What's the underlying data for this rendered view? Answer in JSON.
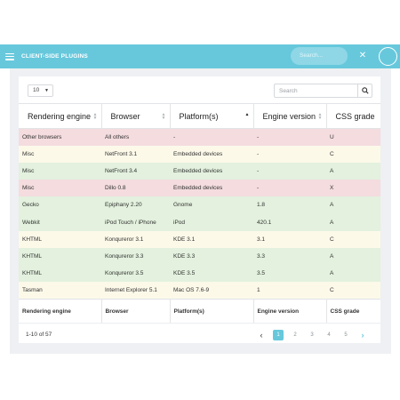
{
  "navbar": {
    "title": "CLIENT-SIDE PLUGINS",
    "search_placeholder": "Search..."
  },
  "controls": {
    "page_size": "10",
    "search_placeholder": "Search"
  },
  "table": {
    "headers": [
      "Rendering engine",
      "Browser",
      "Platform(s)",
      "Engine version",
      "CSS grade"
    ],
    "rows": [
      {
        "status": "red",
        "cells": [
          "Other browsers",
          "All others",
          "-",
          "-",
          "U"
        ]
      },
      {
        "status": "yellow",
        "cells": [
          "Misc",
          "NetFront 3.1",
          "Embedded devices",
          "-",
          "C"
        ]
      },
      {
        "status": "green",
        "cells": [
          "Misc",
          "NetFront 3.4",
          "Embedded devices",
          "-",
          "A"
        ]
      },
      {
        "status": "red",
        "cells": [
          "Misc",
          "Dillo 0.8",
          "Embedded devices",
          "-",
          "X"
        ]
      },
      {
        "status": "green",
        "cells": [
          "Gecko",
          "Epiphany 2.20",
          "Gnome",
          "1.8",
          "A"
        ]
      },
      {
        "status": "green",
        "cells": [
          "Webkit",
          "iPod Touch / iPhone",
          "iPod",
          "420.1",
          "A"
        ]
      },
      {
        "status": "yellow",
        "cells": [
          "KHTML",
          "Konqureror 3.1",
          "KDE 3.1",
          "3.1",
          "C"
        ]
      },
      {
        "status": "green",
        "cells": [
          "KHTML",
          "Konqureror 3.3",
          "KDE 3.3",
          "3.3",
          "A"
        ]
      },
      {
        "status": "green",
        "cells": [
          "KHTML",
          "Konqureror 3.5",
          "KDE 3.5",
          "3.5",
          "A"
        ]
      },
      {
        "status": "yellow",
        "cells": [
          "Tasman",
          "Internet Explorer 5.1",
          "Mac OS 7.6-9",
          "1",
          "C"
        ]
      }
    ],
    "footers": [
      "Rendering engine",
      "Browser",
      "Platform(s)",
      "Engine version",
      "CSS grade"
    ],
    "sorted_column": "Platform(s)"
  },
  "footer": {
    "info": "1-10 of 57",
    "prev": "‹",
    "next": "›",
    "pages": [
      "1",
      "2",
      "3",
      "4",
      "5"
    ],
    "active_page": "1"
  },
  "colors": {
    "accent": "#67c8dc",
    "row_red": "#f4dcdf",
    "row_yellow": "#fcf9e9",
    "row_green": "#e3f1de"
  },
  "icons": {
    "menu": "hamburger-icon",
    "tools": "tools-icon",
    "user": "user-avatar-circle",
    "search": "search-icon"
  }
}
